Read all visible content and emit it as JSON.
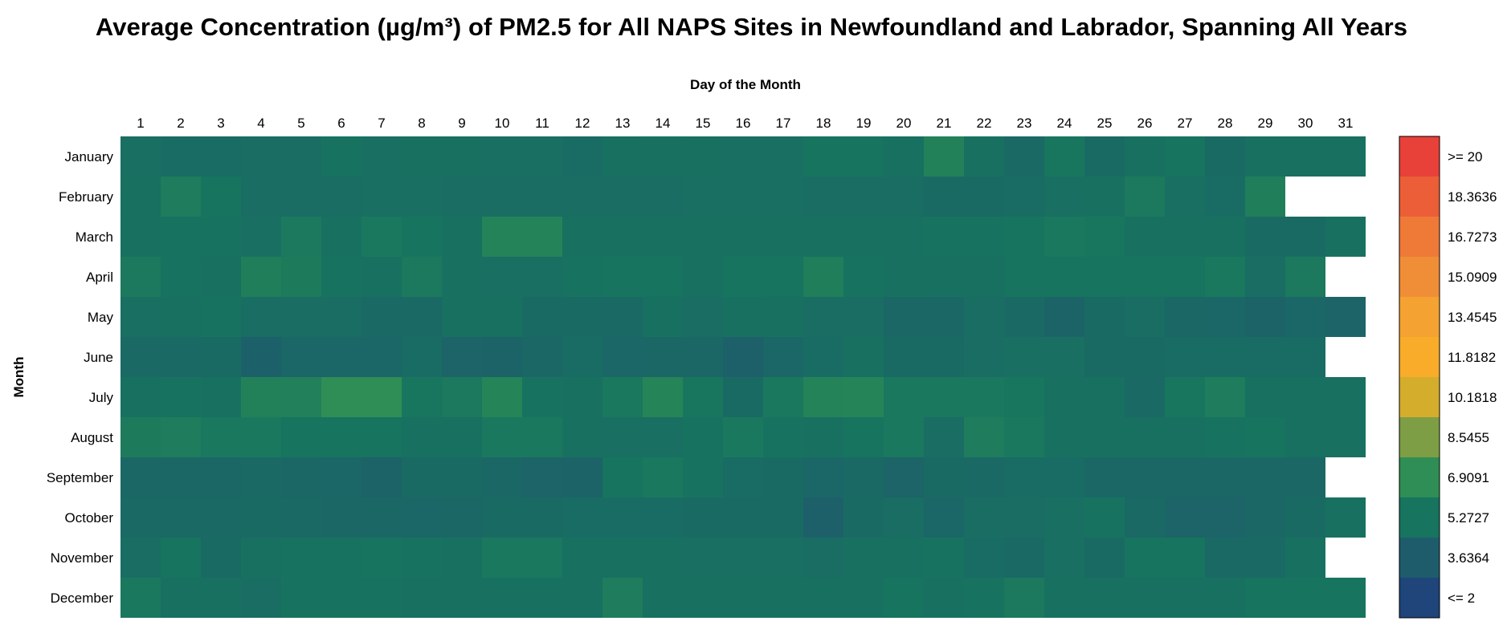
{
  "chart_data": {
    "type": "heatmap",
    "title": "Average Concentration (µg/m³) of PM2.5 for All NAPS Sites in Newfoundland and Labrador, Spanning All Years",
    "xlabel": "Day of the Month",
    "ylabel": "Month",
    "x": [
      "1",
      "2",
      "3",
      "4",
      "5",
      "6",
      "7",
      "8",
      "9",
      "10",
      "11",
      "12",
      "13",
      "14",
      "15",
      "16",
      "17",
      "18",
      "19",
      "20",
      "21",
      "22",
      "23",
      "24",
      "25",
      "26",
      "27",
      "28",
      "29",
      "30",
      "31"
    ],
    "y": [
      "January",
      "February",
      "March",
      "April",
      "May",
      "June",
      "July",
      "August",
      "September",
      "October",
      "November",
      "December"
    ],
    "values": [
      [
        4.9,
        4.7,
        4.7,
        4.8,
        4.8,
        5.2,
        4.9,
        5.0,
        5.0,
        4.9,
        4.9,
        4.7,
        5.0,
        5.1,
        5.0,
        4.9,
        4.9,
        5.3,
        5.3,
        5.0,
        6.1,
        5.1,
        4.5,
        5.4,
        4.6,
        5.1,
        5.3,
        4.6,
        5.0,
        5.0,
        5.0
      ],
      [
        5.0,
        5.8,
        5.3,
        4.8,
        4.8,
        4.8,
        4.9,
        4.9,
        4.8,
        4.8,
        4.8,
        4.8,
        4.8,
        4.8,
        4.9,
        4.9,
        4.9,
        4.8,
        4.8,
        4.8,
        4.6,
        4.6,
        4.7,
        4.9,
        5.1,
        5.6,
        4.9,
        4.7,
        5.9,
        null,
        null
      ],
      [
        5.1,
        5.2,
        5.2,
        4.9,
        5.6,
        5.1,
        5.5,
        5.3,
        5.1,
        6.2,
        6.2,
        5.1,
        5.1,
        5.1,
        5.1,
        5.1,
        5.0,
        5.0,
        5.0,
        5.0,
        5.2,
        5.2,
        5.3,
        5.5,
        5.4,
        5.0,
        5.0,
        5.0,
        4.6,
        4.6,
        5.1
      ],
      [
        5.6,
        5.2,
        5.1,
        5.9,
        5.7,
        5.2,
        5.1,
        5.6,
        5.0,
        4.9,
        4.9,
        5.2,
        5.3,
        5.3,
        5.1,
        5.3,
        5.3,
        5.9,
        5.2,
        5.1,
        5.0,
        5.0,
        5.3,
        5.3,
        5.3,
        5.3,
        5.3,
        5.5,
        4.8,
        5.6,
        null
      ],
      [
        4.9,
        5.0,
        5.2,
        4.8,
        4.8,
        4.8,
        4.5,
        4.5,
        5.1,
        5.0,
        4.6,
        4.6,
        4.5,
        5.0,
        4.8,
        5.1,
        5.0,
        4.8,
        4.8,
        4.4,
        4.4,
        4.8,
        4.5,
        4.1,
        4.6,
        4.8,
        4.4,
        4.3,
        4.1,
        4.3,
        4.2
      ],
      [
        4.5,
        4.5,
        4.6,
        4.0,
        4.3,
        4.3,
        4.3,
        4.7,
        4.2,
        4.1,
        4.4,
        4.7,
        4.3,
        4.4,
        4.4,
        3.9,
        4.3,
        4.7,
        5.0,
        4.6,
        4.6,
        4.8,
        4.9,
        4.9,
        4.6,
        4.6,
        4.7,
        4.7,
        4.7,
        4.7,
        null
      ],
      [
        5.1,
        5.2,
        5.0,
        6.1,
        6.0,
        6.9,
        6.9,
        5.4,
        5.6,
        6.3,
        5.2,
        5.0,
        5.5,
        6.3,
        5.4,
        4.6,
        5.5,
        6.2,
        6.3,
        5.5,
        5.5,
        5.5,
        5.4,
        5.0,
        5.1,
        4.5,
        5.4,
        5.8,
        5.0,
        5.0,
        5.0
      ],
      [
        5.7,
        5.8,
        5.5,
        5.5,
        5.3,
        5.3,
        5.3,
        5.0,
        5.0,
        5.5,
        5.5,
        5.1,
        4.9,
        4.9,
        5.2,
        5.5,
        5.2,
        5.0,
        5.3,
        5.5,
        4.8,
        5.8,
        5.5,
        5.0,
        5.1,
        5.1,
        5.1,
        5.2,
        5.3,
        5.0,
        5.0
      ],
      [
        4.4,
        4.4,
        4.4,
        4.5,
        4.4,
        4.3,
        4.1,
        4.6,
        4.6,
        4.4,
        4.2,
        4.1,
        5.3,
        5.5,
        5.2,
        4.7,
        4.6,
        4.3,
        4.5,
        4.2,
        4.6,
        4.5,
        4.7,
        4.7,
        4.4,
        4.4,
        4.4,
        4.4,
        4.4,
        4.4,
        null
      ],
      [
        4.5,
        4.5,
        4.5,
        4.6,
        4.5,
        4.4,
        4.4,
        4.3,
        4.4,
        4.6,
        4.6,
        4.7,
        4.7,
        4.7,
        4.6,
        4.6,
        4.6,
        3.9,
        4.6,
        4.8,
        4.3,
        4.8,
        4.8,
        4.9,
        5.2,
        4.5,
        4.2,
        4.2,
        4.4,
        4.6,
        5.1
      ],
      [
        4.8,
        5.3,
        4.6,
        5.1,
        5.2,
        5.2,
        5.3,
        5.2,
        5.0,
        5.5,
        5.5,
        5.0,
        5.0,
        5.0,
        4.9,
        4.9,
        4.9,
        4.8,
        5.0,
        5.0,
        5.2,
        4.7,
        4.5,
        4.9,
        4.6,
        5.3,
        5.3,
        4.5,
        4.5,
        5.1,
        null
      ],
      [
        5.5,
        5.0,
        5.0,
        4.8,
        5.2,
        5.2,
        5.2,
        5.0,
        5.0,
        5.1,
        5.1,
        5.0,
        5.8,
        5.0,
        5.1,
        5.1,
        5.1,
        5.1,
        5.1,
        5.3,
        5.1,
        5.2,
        5.6,
        5.1,
        5.1,
        5.1,
        5.1,
        5.1,
        5.3,
        5.3,
        5.3
      ]
    ],
    "colorbar": {
      "labels": [
        ">= 20",
        "18.3636",
        "16.7273",
        "15.0909",
        "13.4545",
        "11.8182",
        "10.1818",
        "8.5455",
        "6.9091",
        "5.2727",
        "3.6364",
        "<= 2"
      ],
      "colors": [
        "#e8413a",
        "#ec5e37",
        "#ef7a38",
        "#f08e37",
        "#f4a232",
        "#f8ac2a",
        "#d5ad2d",
        "#7e9e45",
        "#2f8e55",
        "#17745f",
        "#1e5c6c",
        "#1f457a"
      ],
      "min": 2,
      "max": 20
    },
    "missing_color": "#ffffff",
    "legend_position": "right"
  }
}
